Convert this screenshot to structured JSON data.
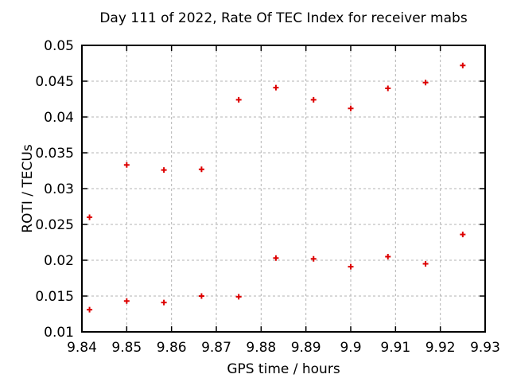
{
  "chart_data": {
    "type": "scatter",
    "title": "Day 111 of 2022, Rate Of TEC Index for receiver mabs",
    "xlabel": "GPS time / hours",
    "ylabel": "ROTI / TECUs",
    "xlim": [
      9.84,
      9.93
    ],
    "ylim": [
      0.01,
      0.05
    ],
    "xticks": {
      "values": [
        9.84,
        9.85,
        9.86,
        9.87,
        9.88,
        9.89,
        9.9,
        9.91,
        9.92,
        9.93
      ],
      "labels": [
        "9.84",
        "9.85",
        "9.86",
        "9.87",
        "9.88",
        "9.89",
        "9.9",
        "9.91",
        "9.92",
        "9.93"
      ]
    },
    "yticks": {
      "values": [
        0.01,
        0.015,
        0.02,
        0.025,
        0.03,
        0.035,
        0.04,
        0.045,
        0.05
      ],
      "labels": [
        "0.01",
        "0.015",
        "0.02",
        "0.025",
        "0.03",
        "0.035",
        "0.04",
        "0.045",
        "0.05"
      ]
    },
    "grid": true,
    "legend": "none",
    "grid_color": "#b3b3b3",
    "axis_color": "#000000",
    "marker": {
      "shape": "plus",
      "color": "#dd0000",
      "size": 7
    },
    "series": [
      {
        "name": "roti-points",
        "points": [
          [
            9.8417,
            0.0131
          ],
          [
            9.8417,
            0.026
          ],
          [
            9.85,
            0.0143
          ],
          [
            9.85,
            0.0333
          ],
          [
            9.8583,
            0.0141
          ],
          [
            9.8583,
            0.0326
          ],
          [
            9.8667,
            0.015
          ],
          [
            9.8667,
            0.0327
          ],
          [
            9.875,
            0.0149
          ],
          [
            9.875,
            0.0424
          ],
          [
            9.8833,
            0.0203
          ],
          [
            9.8833,
            0.0441
          ],
          [
            9.8917,
            0.0202
          ],
          [
            9.8917,
            0.0424
          ],
          [
            9.9,
            0.0191
          ],
          [
            9.9,
            0.0412
          ],
          [
            9.9083,
            0.0205
          ],
          [
            9.9083,
            0.044
          ],
          [
            9.9167,
            0.0195
          ],
          [
            9.9167,
            0.0448
          ],
          [
            9.925,
            0.0236
          ],
          [
            9.925,
            0.0472
          ]
        ]
      }
    ]
  }
}
